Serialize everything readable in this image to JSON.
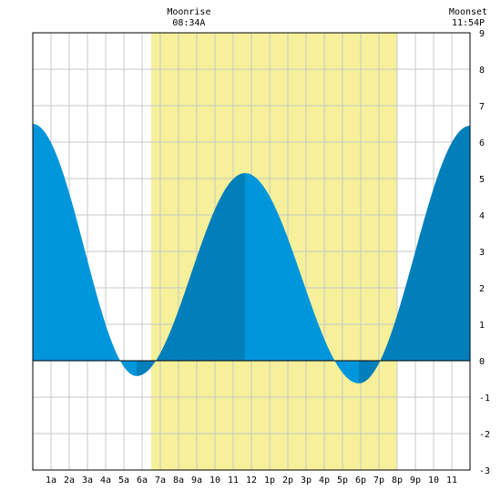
{
  "moon": {
    "rise_label": "Moonrise",
    "rise_time": "08:34A",
    "set_label": "Moonset",
    "set_time": "11:54P"
  },
  "chart_data": {
    "type": "area",
    "x_tick_labels": [
      "1a",
      "2a",
      "3a",
      "4a",
      "5a",
      "6a",
      "7a",
      "8a",
      "9a",
      "10",
      "11",
      "12",
      "1p",
      "2p",
      "3p",
      "4p",
      "5p",
      "6p",
      "7p",
      "8p",
      "9p",
      "10",
      "11"
    ],
    "y_tick_labels": [
      "9",
      "8",
      "7",
      "6",
      "5",
      "4",
      "3",
      "2",
      "1",
      "0",
      "-1",
      "-2",
      "-3"
    ],
    "xlim_hours": [
      0,
      24
    ],
    "ylim": [
      -3,
      9
    ],
    "grid": true,
    "daylight_hours": [
      6.5,
      20.0
    ],
    "moonrise_hour": 8.57,
    "moonset_hour": 23.9,
    "series": [
      {
        "points": [
          [
            0,
            6.5
          ],
          [
            5.7,
            -0.42
          ],
          [
            11.65,
            5.15
          ],
          [
            17.9,
            -0.62
          ],
          [
            24,
            6.45
          ]
        ]
      }
    ],
    "colors": {
      "daylight": "#f5f099",
      "tide_light": "#0096dc",
      "tide_dark": "#007fbb",
      "grid": "#c8c8c8",
      "zero_line": "#000000"
    }
  }
}
